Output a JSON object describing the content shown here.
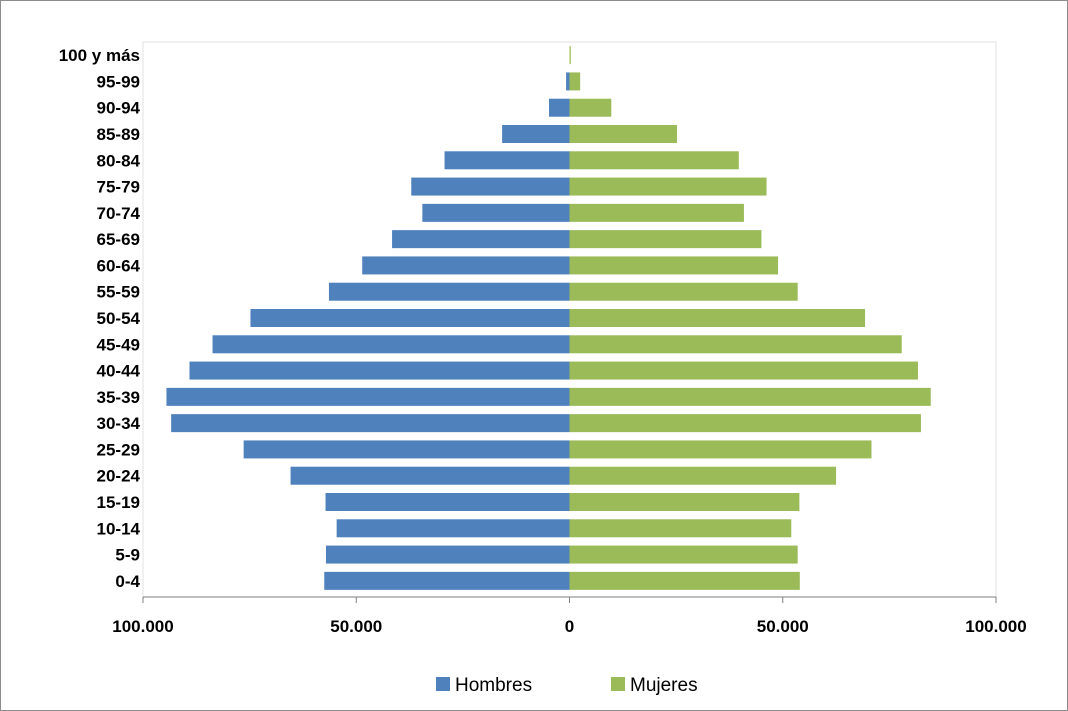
{
  "chart_data": {
    "type": "bar",
    "orientation": "horizontal",
    "layout": "population-pyramid",
    "categories": [
      "100 y más",
      "95-99",
      "90-94",
      "85-89",
      "80-84",
      "75-79",
      "70-74",
      "65-69",
      "60-64",
      "55-59",
      "50-54",
      "45-49",
      "40-44",
      "35-39",
      "30-34",
      "25-29",
      "20-24",
      "15-19",
      "10-14",
      "5-9",
      "0-4"
    ],
    "series": [
      {
        "name": "Hombres",
        "color": "#4f81bd",
        "values": [
          0,
          800,
          4800,
          15800,
          29300,
          37100,
          34500,
          41600,
          48600,
          56400,
          74800,
          83700,
          89100,
          94500,
          93400,
          76400,
          65400,
          57200,
          54600,
          57100,
          57500
        ]
      },
      {
        "name": "Mujeres",
        "color": "#9bbb59",
        "values": [
          300,
          2500,
          9800,
          25200,
          39700,
          46200,
          40900,
          45000,
          48900,
          53500,
          69300,
          77900,
          81700,
          84700,
          82400,
          70800,
          62500,
          53900,
          52000,
          53500,
          54000
        ]
      }
    ],
    "xlim": [
      -100000,
      100000
    ],
    "xticks": [
      {
        "value": -100000,
        "label": "100.000"
      },
      {
        "value": -50000,
        "label": "50.000"
      },
      {
        "value": 0,
        "label": "0"
      },
      {
        "value": 50000,
        "label": "50.000"
      },
      {
        "value": 100000,
        "label": "100.000"
      }
    ],
    "grid": false,
    "legend": "bottom"
  }
}
